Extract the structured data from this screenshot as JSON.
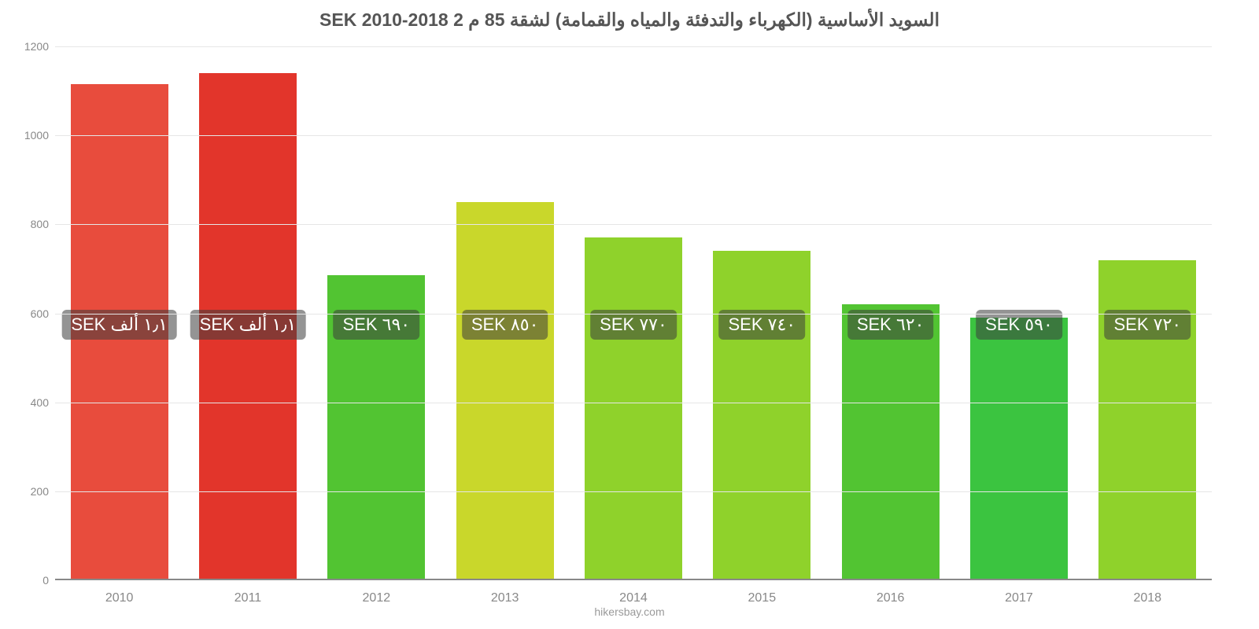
{
  "chart": {
    "type": "bar",
    "title": "السويد الأساسية (الكهرباء والتدفئة والمياه والقمامة) لشقة 85 م 2 SEK 2010-2018",
    "title_fontsize": 23,
    "title_color": "#555555",
    "background_color": "#ffffff",
    "grid_color": "#e6e6e6",
    "axis_label_color": "#888888",
    "axis_label_fontsize": 14,
    "attribution": "hikersbay.com",
    "attribution_color": "#9a9a9a",
    "ylim": [
      0,
      1200
    ],
    "ytick_step": 200,
    "yticks": [
      0,
      200,
      400,
      600,
      800,
      1000,
      1200
    ],
    "bar_width": 0.76,
    "badge_bg": "rgba(60,60,60,0.55)",
    "badge_text_color": "#ffffff",
    "badge_fontsize": 22,
    "badge_y_value": 575,
    "categories": [
      "2010",
      "2011",
      "2012",
      "2013",
      "2014",
      "2015",
      "2016",
      "2017",
      "2018"
    ],
    "values": [
      1115,
      1140,
      685,
      850,
      770,
      740,
      620,
      590,
      720
    ],
    "bar_colors": [
      "#e84c3d",
      "#e2352b",
      "#52c432",
      "#c9d72b",
      "#8fd22b",
      "#8fd22b",
      "#52c432",
      "#3bc440",
      "#8fd22b"
    ],
    "value_labels": [
      "١٫١ ألف SEK",
      "١٫١ ألف SEK",
      "٦٩٠ SEK",
      "٨٥٠ SEK",
      "٧٧٠ SEK",
      "٧٤٠ SEK",
      "٦٢٠ SEK",
      "٥٩٠ SEK",
      "٧٢٠ SEK"
    ]
  }
}
